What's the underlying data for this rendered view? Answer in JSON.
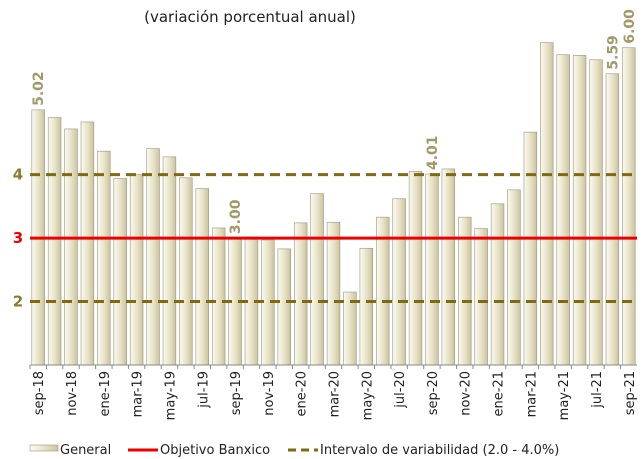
{
  "chart_data": {
    "type": "bar",
    "subtitle": "(variación porcentual anual)",
    "categories": [
      "sep-18",
      null,
      "nov-18",
      null,
      "ene-19",
      null,
      "mar-19",
      null,
      "may-19",
      null,
      "jul-19",
      null,
      "sep-19",
      null,
      "nov-19",
      null,
      "ene-20",
      null,
      "mar-20",
      null,
      "may-20",
      null,
      "jul-20",
      null,
      "sep-20",
      null,
      "nov-20",
      null,
      "ene-21",
      null,
      "mar-21",
      null,
      "may-21",
      null,
      "jul-21",
      null,
      "sep-21"
    ],
    "series": [
      {
        "name": "General",
        "color": "#e6e1c4",
        "values": [
          5.02,
          4.9,
          4.72,
          4.83,
          4.37,
          3.94,
          4.0,
          4.41,
          4.28,
          3.95,
          3.78,
          3.16,
          3.0,
          3.02,
          2.97,
          2.83,
          3.24,
          3.7,
          3.25,
          2.15,
          2.84,
          3.33,
          3.62,
          4.05,
          4.01,
          4.09,
          3.33,
          3.15,
          3.54,
          3.76,
          4.67,
          6.08,
          5.89,
          5.88,
          5.81,
          5.59,
          6.0
        ],
        "value_labels": [
          "5.02",
          null,
          null,
          null,
          null,
          null,
          null,
          null,
          null,
          null,
          null,
          null,
          "3.00",
          null,
          null,
          null,
          null,
          null,
          null,
          null,
          null,
          null,
          null,
          null,
          "4.01",
          null,
          null,
          null,
          null,
          null,
          null,
          null,
          null,
          null,
          null,
          "5.59",
          "6.00"
        ]
      }
    ],
    "target": {
      "name": "Objetivo Banxico",
      "value": 3,
      "color": "#ee0000"
    },
    "interval": {
      "name": "Intervalo de variabilidad (2.0 - 4.0%)",
      "values": [
        2,
        4
      ],
      "color": "#7f6a12"
    },
    "ylim": [
      1,
      6.5
    ],
    "yticks": [
      2,
      3,
      4
    ],
    "ytick_colors": [
      "#8c7b2e",
      "#ee0000",
      "#8c7b2e"
    ],
    "value_label_color": "#a39866"
  }
}
